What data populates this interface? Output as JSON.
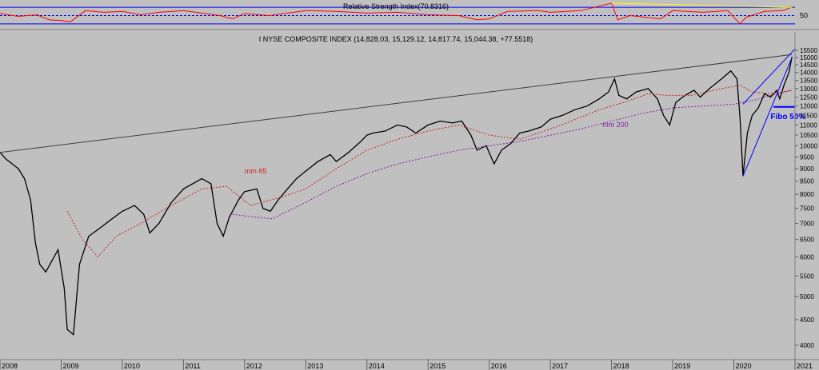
{
  "chart_data": [
    {
      "type": "line",
      "title": "Relative Strength Index(70.8316)",
      "ytick_labels": [
        "50"
      ],
      "reference_levels": [
        70,
        50,
        30
      ],
      "ylim": [
        20,
        80
      ],
      "xlim": [
        2008.0,
        2021.0
      ],
      "series": [
        {
          "color": "#ff0000",
          "x": [
            2008.0,
            2008.3,
            2008.6,
            2008.8,
            2009.0,
            2009.15,
            2009.4,
            2009.7,
            2010.0,
            2010.3,
            2010.6,
            2011.0,
            2011.3,
            2011.6,
            2011.8,
            2012.0,
            2012.4,
            2012.8,
            2013.0,
            2013.5,
            2014.0,
            2014.5,
            2015.0,
            2015.5,
            2015.8,
            2016.0,
            2016.3,
            2016.8,
            2017.0,
            2017.5,
            2018.0,
            2018.1,
            2018.3,
            2018.8,
            2019.0,
            2019.5,
            2019.9,
            2020.1,
            2020.2,
            2020.5,
            2020.8,
            2020.95
          ],
          "values": [
            55,
            48,
            52,
            40,
            38,
            35,
            62,
            58,
            60,
            52,
            58,
            62,
            56,
            50,
            42,
            55,
            50,
            58,
            62,
            60,
            56,
            58,
            52,
            50,
            40,
            42,
            60,
            62,
            58,
            62,
            80,
            40,
            50,
            42,
            62,
            58,
            62,
            30,
            46,
            60,
            62,
            70.8
          ]
        },
        {
          "color": "#ffff00",
          "x": [
            2018.0,
            2020.95
          ],
          "values": [
            80,
            70
          ]
        }
      ]
    },
    {
      "type": "line",
      "title": "I NYSE COMPOSITE INDEX (14,828.03, 15,129.12, 14,817.74, 15,044.38, +77.5518)",
      "x_tick_labels": [
        "2008",
        "2009",
        "2010",
        "2011",
        "2012",
        "2013",
        "2014",
        "2015",
        "2016",
        "2017",
        "2018",
        "2019",
        "2020",
        "2021"
      ],
      "ytick_labels": [
        "4000",
        "4500",
        "5000",
        "5500",
        "6000",
        "6500",
        "7000",
        "7500",
        "8000",
        "8500",
        "9000",
        "9500",
        "10000",
        "10500",
        "11000",
        "11500",
        "12000",
        "12500",
        "13000",
        "13500",
        "14000",
        "14500",
        "15000",
        "15500"
      ],
      "ylim": [
        3800,
        15900
      ],
      "xlim": [
        2008.0,
        2021.0
      ],
      "annotations": [
        {
          "text": "mm 65",
          "color": "#d02020",
          "x": 2012.0,
          "y": 8800
        },
        {
          "text": "mm 200",
          "color": "#8020a0",
          "x": 2017.85,
          "y": 10900
        },
        {
          "text": "Fibo 50%",
          "color": "#0000ff",
          "x": 2020.6,
          "y": 11300
        }
      ],
      "series": [
        {
          "color": "#000000",
          "x": [
            2008.0,
            2008.1,
            2008.2,
            2008.3,
            2008.4,
            2008.5,
            2008.58,
            2008.65,
            2008.75,
            2008.85,
            2008.95,
            2009.05,
            2009.1,
            2009.2,
            2009.3,
            2009.45,
            2009.6,
            2009.8,
            2010.0,
            2010.2,
            2010.35,
            2010.45,
            2010.6,
            2010.8,
            2011.0,
            2011.15,
            2011.3,
            2011.45,
            2011.55,
            2011.65,
            2011.75,
            2011.9,
            2012.0,
            2012.2,
            2012.3,
            2012.42,
            2012.55,
            2012.7,
            2012.85,
            2013.0,
            2013.2,
            2013.4,
            2013.5,
            2013.7,
            2013.9,
            2014.0,
            2014.1,
            2014.3,
            2014.5,
            2014.65,
            2014.8,
            2015.0,
            2015.2,
            2015.4,
            2015.55,
            2015.7,
            2015.8,
            2015.95,
            2016.08,
            2016.2,
            2016.35,
            2016.5,
            2016.65,
            2016.85,
            2017.0,
            2017.2,
            2017.4,
            2017.6,
            2017.8,
            2017.95,
            2018.05,
            2018.12,
            2018.25,
            2018.4,
            2018.6,
            2018.75,
            2018.85,
            2018.95,
            2019.05,
            2019.2,
            2019.35,
            2019.45,
            2019.6,
            2019.8,
            2019.95,
            2020.05,
            2020.1,
            2020.15,
            2020.22,
            2020.3,
            2020.4,
            2020.5,
            2020.6,
            2020.7,
            2020.75,
            2020.82,
            2020.9,
            2020.95
          ],
          "values": [
            9700,
            9400,
            9200,
            9000,
            8600,
            7800,
            6400,
            5800,
            5600,
            5900,
            6200,
            5200,
            4300,
            4200,
            5800,
            6600,
            6800,
            7100,
            7400,
            7600,
            7300,
            6700,
            7000,
            7700,
            8200,
            8400,
            8600,
            8400,
            7000,
            6600,
            7200,
            7800,
            8100,
            8200,
            7500,
            7400,
            7800,
            8200,
            8600,
            8900,
            9300,
            9600,
            9300,
            9700,
            10200,
            10500,
            10600,
            10700,
            11000,
            10900,
            10600,
            11000,
            11200,
            11100,
            11200,
            10500,
            9800,
            10000,
            9200,
            9800,
            10100,
            10600,
            10700,
            10900,
            11300,
            11500,
            11800,
            12000,
            12400,
            12800,
            13600,
            12600,
            12400,
            12800,
            13000,
            12400,
            11500,
            11000,
            12200,
            12600,
            12900,
            12500,
            13000,
            13600,
            14100,
            13600,
            11400,
            8700,
            10600,
            11500,
            11900,
            12700,
            12500,
            12900,
            12400,
            13200,
            14000,
            15044
          ]
        },
        {
          "name": "mm 65",
          "color": "#d02020",
          "x": [
            2009.1,
            2009.35,
            2009.6,
            2009.9,
            2010.3,
            2010.8,
            2011.3,
            2011.7,
            2012.1,
            2012.6,
            2013.0,
            2013.5,
            2014.0,
            2014.5,
            2015.0,
            2015.5,
            2016.0,
            2016.5,
            2017.0,
            2017.5,
            2017.8,
            2018.2,
            2018.6,
            2018.9,
            2019.3,
            2019.8,
            2020.1,
            2020.3,
            2020.6,
            2020.95
          ],
          "values": [
            7400,
            6500,
            6000,
            6600,
            7000,
            7600,
            8200,
            8300,
            7600,
            7900,
            8200,
            9000,
            9800,
            10300,
            10700,
            11000,
            10500,
            10300,
            10800,
            11400,
            11800,
            12200,
            12700,
            12600,
            12600,
            13000,
            13200,
            12800,
            12700,
            12900
          ]
        },
        {
          "name": "mm 200",
          "color": "#8020a0",
          "x": [
            2011.8,
            2012.2,
            2012.45,
            2012.9,
            2013.5,
            2014.0,
            2014.5,
            2015.0,
            2015.5,
            2016.0,
            2016.5,
            2017.0,
            2017.5,
            2018.0,
            2018.5,
            2019.0,
            2019.5,
            2020.0,
            2020.3,
            2020.6,
            2020.95
          ],
          "values": [
            7300,
            7200,
            7150,
            7600,
            8300,
            8800,
            9200,
            9500,
            9800,
            10000,
            10200,
            10500,
            10800,
            11200,
            11600,
            11900,
            12000,
            12100,
            12300,
            12600,
            12900
          ]
        },
        {
          "color": "#404040",
          "x": [
            2008.0,
            2020.95
          ],
          "values": [
            9700,
            15200
          ]
        },
        {
          "color": "#0000ff",
          "x": [
            2020.15,
            2020.95
          ],
          "values": [
            8700,
            15000
          ]
        },
        {
          "color": "#0000ff",
          "x": [
            2020.15,
            2021.0
          ],
          "values": [
            12100,
            15600
          ]
        },
        {
          "color": "#0000ff",
          "x": [
            2020.65,
            2021.0
          ],
          "values": [
            11950,
            11950
          ]
        }
      ]
    }
  ]
}
